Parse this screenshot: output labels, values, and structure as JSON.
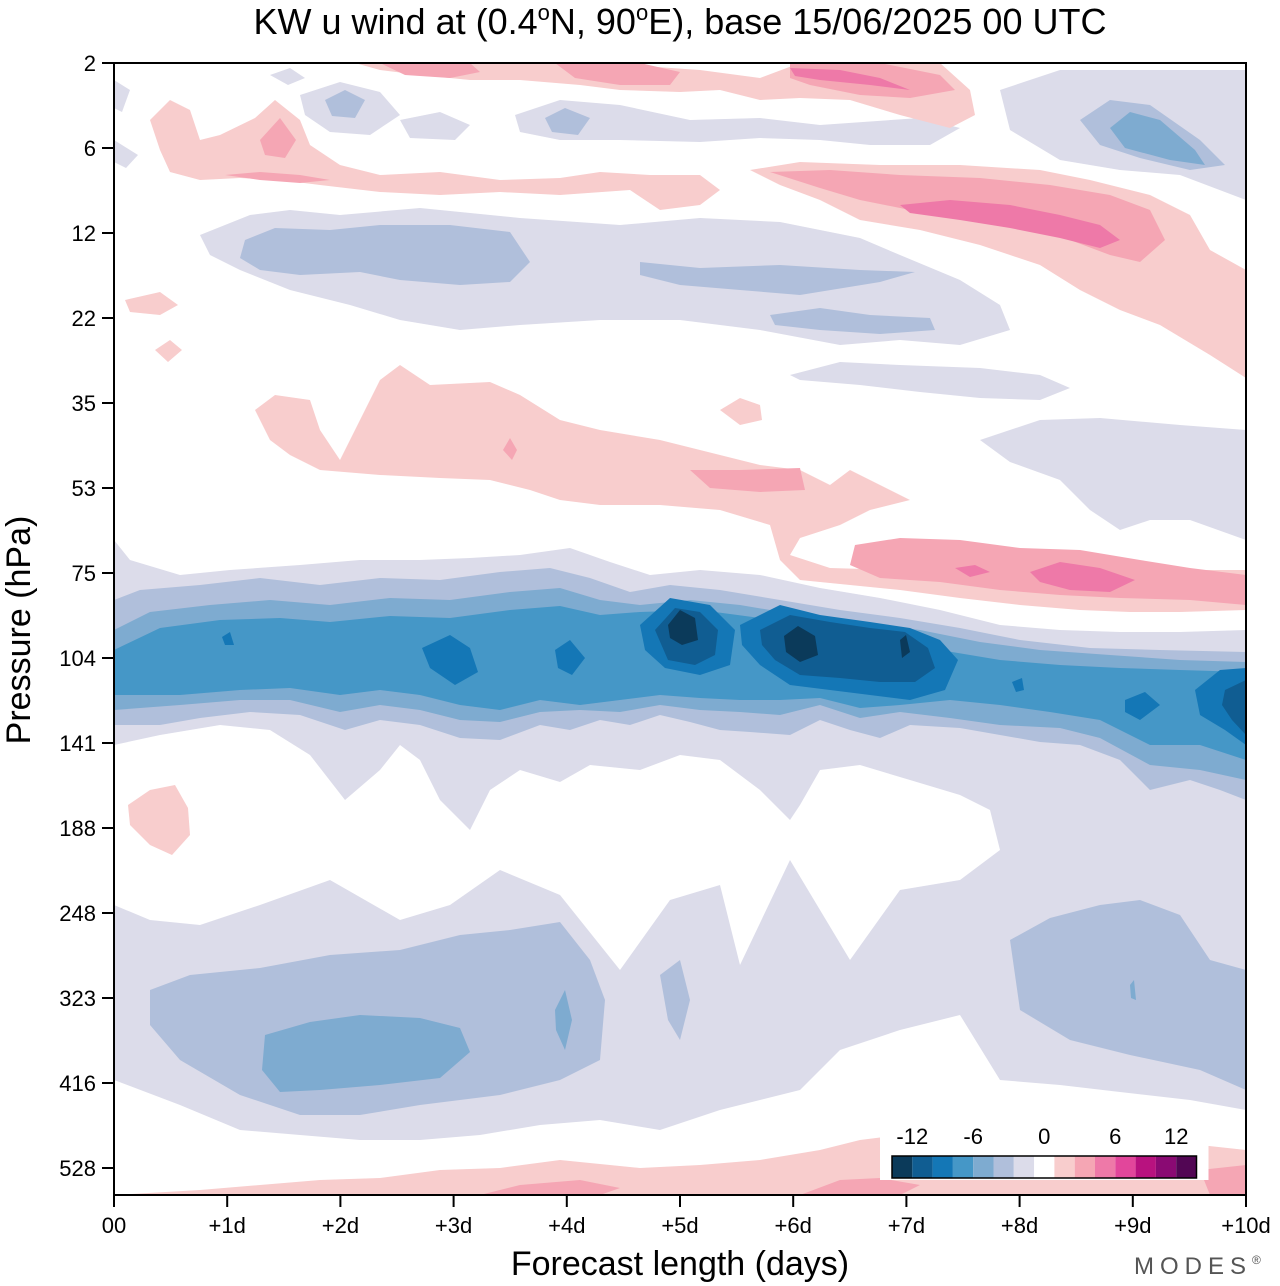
{
  "chart_data": {
    "type": "heatmap",
    "title_parts": {
      "a": "KW u wind at (0.4",
      "sup1": "o",
      "b": "N, 90",
      "sup2": "o",
      "c": "E),  base 15/06/2025  00 UTC"
    },
    "xlabel": "Forecast length (days)",
    "ylabel": "Pressure (hPa)",
    "x_ticks": [
      "00",
      "+1d",
      "+2d",
      "+3d",
      "+4d",
      "+5d",
      "+6d",
      "+7d",
      "+8d",
      "+9d",
      "+10d"
    ],
    "xlim": [
      0,
      10
    ],
    "y_ticks": [
      "2",
      "6",
      "12",
      "22",
      "35",
      "53",
      "75",
      "104",
      "141",
      "188",
      "248",
      "323",
      "416",
      "528"
    ],
    "y_scale": "log-pressure",
    "ylim_hPa": [
      2,
      600
    ],
    "contour_levels": [
      -14,
      -12,
      -10,
      -8,
      -6,
      -4,
      -2,
      2,
      4,
      6,
      8,
      10,
      12,
      14
    ],
    "legend": {
      "placement": "bottom-right",
      "labels": [
        "-12",
        "-6",
        "0",
        "6",
        "12"
      ],
      "colors": [
        "#0b3a5a",
        "#105d92",
        "#1477b6",
        "#4597c7",
        "#7eabd0",
        "#b0bfdb",
        "#dcdcea",
        "#ffffff",
        "#f8cdcd",
        "#f5a6b4",
        "#ee79a8",
        "#e2469b",
        "#b8127f",
        "#8a0a73",
        "#520654"
      ]
    },
    "bands": [
      {
        "name": "strong easterly jet core near 104 hPa",
        "sign": "negative",
        "peak_u": -14,
        "pressure_hPa": 104
      },
      {
        "name": "upper tropospheric easterlies near 323-416 hPa",
        "sign": "negative",
        "peak_u": -6,
        "pressure_hPa": 380
      },
      {
        "name": "stratospheric westerlies near 75 hPa after day 6",
        "sign": "positive",
        "peak_u": 8,
        "pressure_hPa": 78
      },
      {
        "name": "westerlies near 6-12 hPa",
        "sign": "positive",
        "peak_u": 8,
        "pressure_hPa": 10
      }
    ],
    "brand": "MODES",
    "brand_mark": "®"
  }
}
